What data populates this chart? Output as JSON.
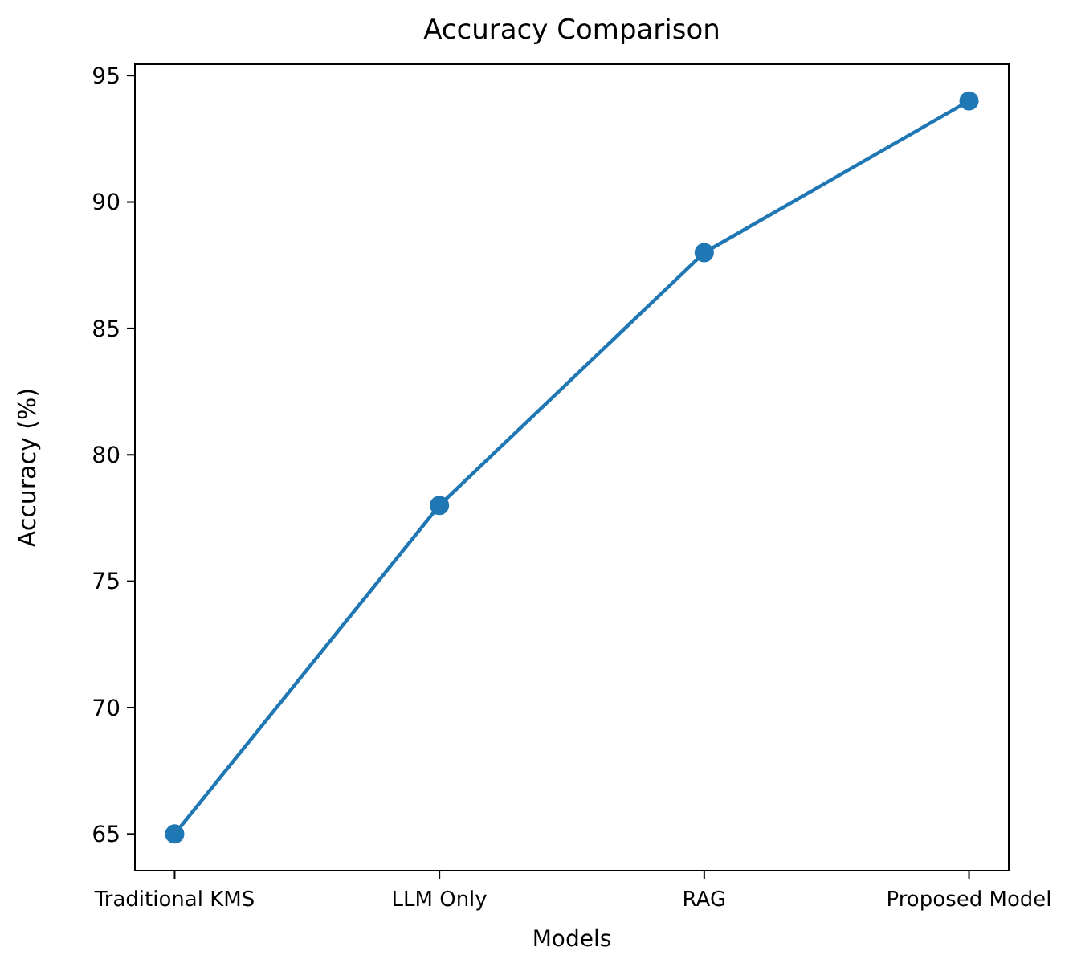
{
  "chart_data": {
    "type": "line",
    "title": "Accuracy Comparison",
    "xlabel": "Models",
    "ylabel": "Accuracy (%)",
    "categories": [
      "Traditional KMS",
      "LLM Only",
      "RAG",
      "Proposed Model"
    ],
    "series": [
      {
        "color": "#1f77b4",
        "values": [
          65,
          78,
          88,
          94
        ]
      }
    ],
    "ylim": [
      63.55,
      95.45
    ],
    "yticks": [
      65,
      70,
      75,
      80,
      85,
      90,
      95
    ],
    "grid": false,
    "marker": "circle",
    "line_style": "solid"
  }
}
